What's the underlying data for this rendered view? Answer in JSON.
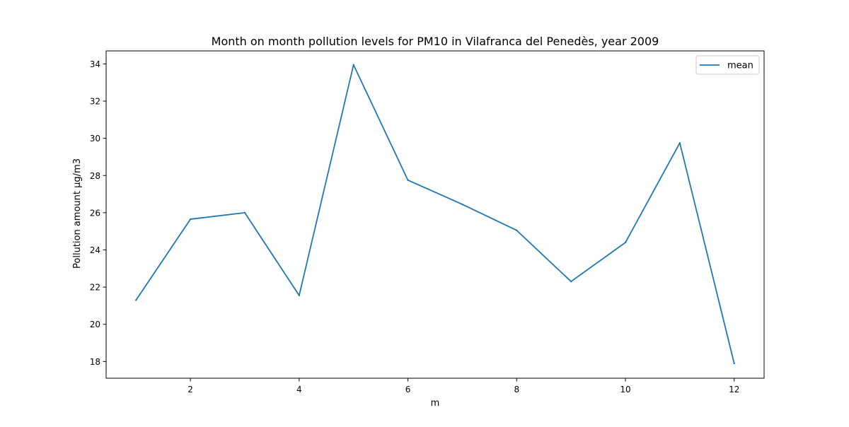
{
  "chart_data": {
    "type": "line",
    "title": "Month on month pollution levels for PM10 in Vilafranca del Penedès, year 2009",
    "xlabel": "m",
    "ylabel": "Pollution amount µg/m3",
    "xlim": [
      0.45,
      12.55
    ],
    "ylim": [
      17.1,
      34.7
    ],
    "xticks": [
      2,
      4,
      6,
      8,
      10,
      12
    ],
    "yticks": [
      18,
      20,
      22,
      24,
      26,
      28,
      30,
      32,
      34
    ],
    "legend_position": "top-right",
    "grid": false,
    "series": [
      {
        "name": "mean",
        "color": "#1f77b4",
        "x": [
          1,
          2,
          3,
          4,
          5,
          6,
          7,
          8,
          9,
          10,
          11,
          12
        ],
        "y": [
          21.3,
          25.65,
          26.0,
          21.55,
          33.95,
          27.75,
          26.45,
          25.05,
          22.3,
          24.4,
          29.75,
          17.9
        ]
      }
    ]
  }
}
